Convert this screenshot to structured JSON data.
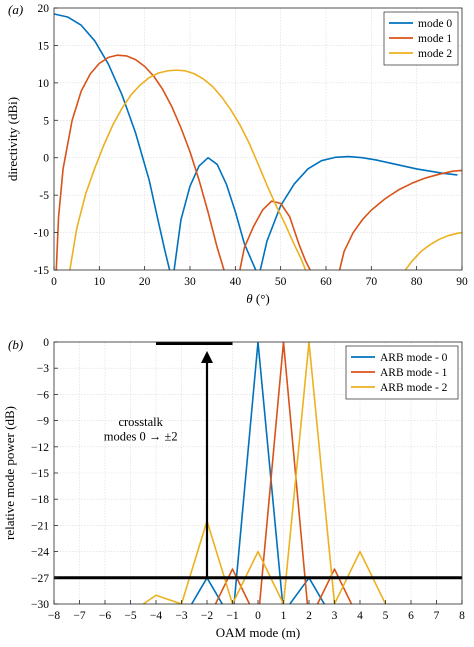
{
  "chart_data": [
    {
      "type": "line",
      "panel_label": "(a)",
      "xlabel": "θ (°)",
      "ylabel": "directivity (dBi)",
      "xlim": [
        0,
        90
      ],
      "ylim": [
        -15,
        20
      ],
      "xticks": [
        "0",
        "10",
        "20",
        "30",
        "40",
        "50",
        "60",
        "70",
        "80",
        "90"
      ],
      "yticks": [
        "20",
        "15",
        "10",
        "5",
        "0",
        "-5",
        "-10",
        "-15"
      ],
      "grid": true,
      "legend_position": "top-right",
      "series": [
        {
          "name": "mode 0",
          "color": "#0072BD",
          "x": [
            0,
            3,
            6,
            9,
            12,
            15,
            18,
            21,
            23,
            24.5,
            25.5,
            null,
            26.5,
            28,
            30,
            32,
            34,
            36,
            38,
            40,
            42,
            43.5,
            44.5,
            null,
            45.5,
            47,
            50,
            53,
            56,
            59,
            62,
            65,
            68,
            71,
            74,
            77,
            80,
            83,
            86,
            89
          ],
          "y": [
            19.2,
            18.8,
            17.7,
            15.6,
            12.5,
            8.4,
            3.3,
            -3,
            -8.5,
            -12.5,
            -15,
            null,
            -15,
            -8.3,
            -3.8,
            -1.1,
            0,
            -0.9,
            -3.5,
            -7.2,
            -11.5,
            -13.6,
            -15,
            null,
            -15,
            -11.1,
            -6.4,
            -3.5,
            -1.5,
            -0.4,
            0.05,
            0.15,
            0,
            -0.3,
            -0.7,
            -1.1,
            -1.5,
            -1.8,
            -2.1,
            -2.3
          ]
        },
        {
          "name": "mode 1",
          "color": "#D95319",
          "x": [
            0.5,
            1,
            2,
            4,
            6,
            8,
            10,
            12,
            14,
            16,
            18,
            20,
            22,
            24,
            26,
            28,
            30,
            32,
            34,
            36,
            37.5,
            null,
            41,
            42,
            44,
            46,
            48,
            50,
            52,
            54,
            55.5,
            56.5,
            null,
            63,
            64,
            66,
            68,
            70,
            73,
            76,
            79,
            82,
            85,
            88,
            90
          ],
          "y": [
            -15,
            -8,
            -1.5,
            5,
            8.9,
            11.2,
            12.6,
            13.4,
            13.7,
            13.6,
            13.1,
            12.2,
            10.9,
            9.1,
            6.8,
            4,
            0.8,
            -3,
            -7.3,
            -12,
            -15,
            null,
            -15,
            -12,
            -9.2,
            -7,
            -5.8,
            -6.1,
            -7.9,
            -11.5,
            -13.8,
            -15,
            null,
            -15,
            -12.5,
            -10,
            -8.3,
            -7,
            -5.5,
            -4.3,
            -3.4,
            -2.7,
            -2.2,
            -1.8,
            -1.7
          ]
        },
        {
          "name": "mode 2",
          "color": "#EDB120",
          "x": [
            3.5,
            5,
            7,
            9,
            11,
            13,
            15,
            17,
            19,
            21,
            23,
            25,
            27,
            29,
            31,
            33,
            35,
            37,
            39,
            41,
            43,
            45,
            47,
            49,
            51,
            53,
            54.5,
            55.5,
            null,
            77.5,
            79,
            81,
            83,
            85,
            87,
            89,
            90
          ],
          "y": [
            -15,
            -9.5,
            -4.8,
            -1.4,
            1.7,
            4.4,
            6.6,
            8.4,
            9.7,
            10.7,
            11.3,
            11.6,
            11.7,
            11.6,
            11.2,
            10.5,
            9.5,
            8.1,
            6.4,
            4.4,
            2,
            -0.8,
            -3.7,
            -6.4,
            -8.9,
            -11.6,
            -13.5,
            -15,
            null,
            -15,
            -13.8,
            -12.5,
            -11.6,
            -10.9,
            -10.4,
            -10.1,
            -10
          ]
        }
      ]
    },
    {
      "type": "line",
      "panel_label": "(b)",
      "xlabel": "OAM mode (m)",
      "ylabel": "relative mode power (dB)",
      "xlim": [
        -8,
        8
      ],
      "ylim": [
        -30,
        0
      ],
      "xticks": [
        "−8",
        "−7",
        "−6",
        "−5",
        "−4",
        "−3",
        "−2",
        "−1",
        "0",
        "1",
        "2",
        "3",
        "4",
        "5",
        "6",
        "7",
        "8"
      ],
      "yticks": [
        "0",
        "−3",
        "−6",
        "−9",
        "−12",
        "−15",
        "−18",
        "−21",
        "−24",
        "−27",
        "−30"
      ],
      "grid": true,
      "legend_position": "top-right",
      "series": [
        {
          "name": "ARB mode - 0",
          "color": "#0072BD",
          "x": [
            -5,
            -4,
            -3,
            -2,
            -1,
            0,
            1,
            2,
            3,
            4,
            5
          ],
          "y": [
            -32,
            -31,
            -32,
            -27,
            -32,
            0,
            -31,
            -27,
            -32,
            -31,
            -32
          ]
        },
        {
          "name": "ARB mode - 1",
          "color": "#D95319",
          "x": [
            -4,
            -3,
            -2,
            -1,
            0,
            1,
            2,
            3,
            4,
            5,
            6
          ],
          "y": [
            -32,
            -31,
            -32,
            -26,
            -32,
            0,
            -32,
            -26,
            -32,
            -31,
            -32
          ]
        },
        {
          "name": "ARB mode - 2",
          "color": "#EDB120",
          "x": [
            -4.5,
            -4,
            -3,
            -2,
            -1,
            0,
            1,
            2,
            3,
            4,
            5
          ],
          "y": [
            -30,
            -29,
            -30,
            -20.5,
            -30,
            -24,
            -30,
            0,
            -30,
            -24,
            -30
          ]
        }
      ],
      "annotation": {
        "line1": "crosstalk",
        "line2": "modes 0 → ±2",
        "arrow_x": -2,
        "arrow_from": -27,
        "arrow_to": 0,
        "reference_level": -27,
        "top_bar": [
          -4,
          -1
        ]
      }
    }
  ]
}
